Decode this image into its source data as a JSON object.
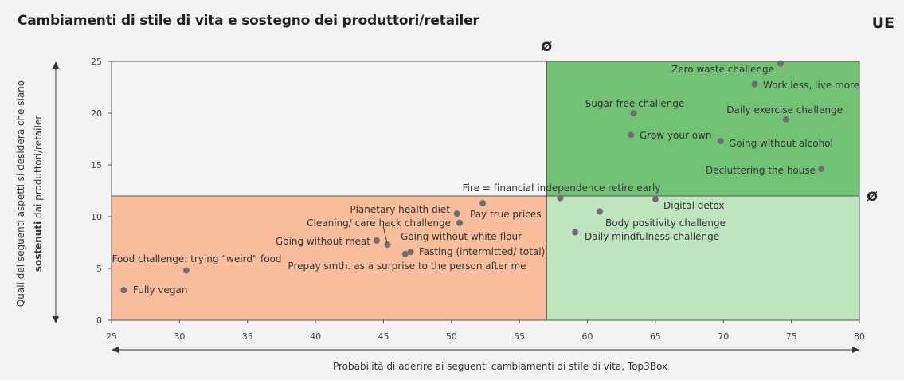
{
  "header": {
    "title": "Cambiamenti di stile di vita e sostegno dei produttori/retailer",
    "region": "UE"
  },
  "chart_data": {
    "type": "scatter",
    "xlabel": "Probabilità di aderire ai seguenti cambiamenti di stile di vita, Top3Box",
    "ylabel_part1": "Quali dei seguenti aspetti si desidera che siano",
    "ylabel_part2_bold": "sostenuti",
    "ylabel_part3": "dai produttori/retailer",
    "xlim": [
      25,
      80
    ],
    "ylim": [
      0,
      25
    ],
    "xticks": [
      25,
      30,
      35,
      40,
      45,
      50,
      55,
      60,
      65,
      70,
      75,
      80
    ],
    "yticks": [
      0,
      5,
      10,
      15,
      20,
      25
    ],
    "avg_x": 57,
    "avg_y": 12,
    "avg_symbol": "Ø",
    "quadrant_colors": {
      "top_right": "#72c174",
      "bottom_right": "#bfe5bf",
      "bottom_left": "#f8bd9c",
      "top_left": "#f5f5f5"
    },
    "point_color": "#6f6f6f",
    "points": [
      {
        "label": "Zero waste challenge",
        "x": 74.2,
        "y": 24.8,
        "anchor": "end"
      },
      {
        "label": "Work less, live more",
        "x": 72.3,
        "y": 22.8,
        "anchor": "start"
      },
      {
        "label": "Sugar free challenge",
        "x": 63.4,
        "y": 20.0,
        "anchor": "middle"
      },
      {
        "label": "Daily exercise challenge",
        "x": 74.6,
        "y": 19.4,
        "anchor": "end"
      },
      {
        "label": "Grow your own",
        "x": 63.2,
        "y": 17.9,
        "anchor": "start"
      },
      {
        "label": "Going without alcohol",
        "x": 69.8,
        "y": 17.3,
        "anchor": "start"
      },
      {
        "label": "Decluttering the house",
        "x": 77.2,
        "y": 14.6,
        "anchor": "end"
      },
      {
        "label": "Fire = financial independence retire early",
        "x": 58.0,
        "y": 11.8,
        "anchor": "middle"
      },
      {
        "label": "Digital detox",
        "x": 65.0,
        "y": 11.7,
        "anchor": "start"
      },
      {
        "label": "Body positivity challenge",
        "x": 60.9,
        "y": 10.5,
        "anchor": "start"
      },
      {
        "label": "Daily mindfulness challenge",
        "x": 59.1,
        "y": 8.5,
        "anchor": "start"
      },
      {
        "label": "Pay true prices",
        "x": 52.3,
        "y": 11.3,
        "anchor": "start"
      },
      {
        "label": "Planetary health diet",
        "x": 50.4,
        "y": 10.3,
        "anchor": "end"
      },
      {
        "label": "Cleaning/ care hack challenge",
        "x": 50.6,
        "y": 9.4,
        "anchor": "end"
      },
      {
        "label": "Going without white flour",
        "x": 45.3,
        "y": 7.3,
        "anchor": "start"
      },
      {
        "label": "Going without meat",
        "x": 44.5,
        "y": 7.7,
        "anchor": "end"
      },
      {
        "label": "Fasting (intermitted/ total)",
        "x": 47.0,
        "y": 6.6,
        "anchor": "start"
      },
      {
        "label": "Prepay smth. as a surprise to the person after me",
        "x": 46.6,
        "y": 6.4,
        "anchor": "middle"
      },
      {
        "label": "Food challenge: trying “weird” food",
        "x": 30.5,
        "y": 4.8,
        "anchor": "middle"
      },
      {
        "label": "Fully vegan",
        "x": 25.9,
        "y": 2.9,
        "anchor": "start"
      }
    ]
  }
}
